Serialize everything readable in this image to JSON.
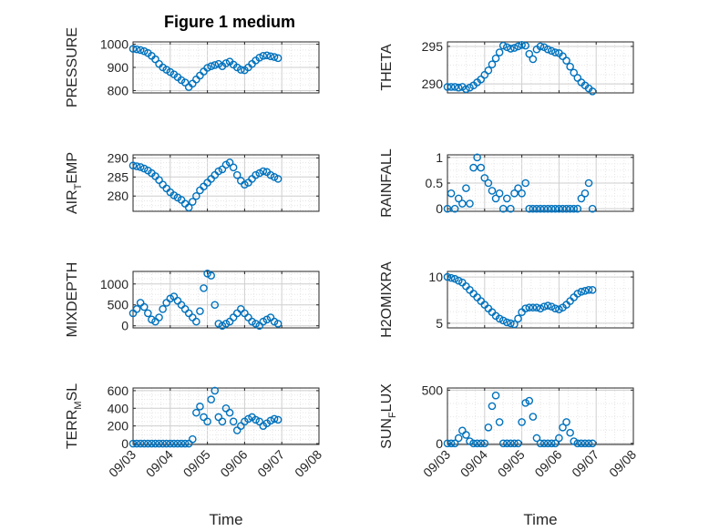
{
  "figure_title": "Figure 1 medium",
  "marker_color": "#0072BD",
  "chart_data": [
    {
      "type": "scatter",
      "id": "pressure",
      "ylabel": "PRESSURE",
      "ylabel_sub": "",
      "xlabel": "",
      "ylim": [
        790,
        1010
      ],
      "yticks": [
        800,
        900,
        1000
      ],
      "xticks": [
        "09/03",
        "09/04",
        "09/05",
        "09/06",
        "09/07",
        "09/08"
      ],
      "xlim": [
        0,
        5
      ],
      "grid": true,
      "x": [
        0,
        0.1,
        0.2,
        0.3,
        0.4,
        0.5,
        0.6,
        0.7,
        0.8,
        0.9,
        1.0,
        1.1,
        1.2,
        1.3,
        1.4,
        1.5,
        1.6,
        1.7,
        1.8,
        1.9,
        2.0,
        2.1,
        2.2,
        2.3,
        2.4,
        2.5,
        2.6,
        2.7,
        2.8,
        2.9,
        3.0,
        3.1,
        3.2,
        3.3,
        3.4,
        3.5,
        3.6,
        3.7,
        3.8,
        3.9
      ],
      "y": [
        980,
        978,
        975,
        970,
        962,
        950,
        935,
        915,
        900,
        890,
        880,
        870,
        858,
        845,
        835,
        815,
        830,
        848,
        865,
        882,
        898,
        905,
        910,
        915,
        905,
        918,
        925,
        912,
        900,
        890,
        888,
        900,
        915,
        930,
        942,
        950,
        952,
        948,
        945,
        940
      ]
    },
    {
      "type": "scatter",
      "id": "theta",
      "ylabel": "THETA",
      "ylabel_sub": "",
      "xlabel": "",
      "ylim": [
        288.8,
        295.6
      ],
      "yticks": [
        290,
        295
      ],
      "xticks": [
        "09/03",
        "09/04",
        "09/05",
        "09/06",
        "09/07",
        "09/08"
      ],
      "xlim": [
        0,
        5
      ],
      "grid": true,
      "x": [
        0,
        0.1,
        0.2,
        0.3,
        0.4,
        0.5,
        0.6,
        0.7,
        0.8,
        0.9,
        1.0,
        1.1,
        1.2,
        1.3,
        1.4,
        1.5,
        1.6,
        1.7,
        1.8,
        1.9,
        2.0,
        2.1,
        2.2,
        2.3,
        2.4,
        2.5,
        2.6,
        2.7,
        2.8,
        2.9,
        3.0,
        3.1,
        3.2,
        3.3,
        3.4,
        3.5,
        3.6,
        3.7,
        3.8,
        3.9
      ],
      "y": [
        289.6,
        289.6,
        289.6,
        289.5,
        289.6,
        289.3,
        289.5,
        289.8,
        290.2,
        290.6,
        291.2,
        291.8,
        292.6,
        293.4,
        294.2,
        295.1,
        294.9,
        294.7,
        294.8,
        295.0,
        295.2,
        295.1,
        294.0,
        293.3,
        294.6,
        295.0,
        294.9,
        294.6,
        294.4,
        294.2,
        294.1,
        293.7,
        293.1,
        292.3,
        291.5,
        290.8,
        290.2,
        289.8,
        289.4,
        289.0
      ]
    },
    {
      "type": "scatter",
      "id": "air_temp",
      "ylabel": "AIR",
      "ylabel_sub": "T",
      "ylabel_suffix": "EMP",
      "xlabel": "",
      "ylim": [
        276,
        290.8
      ],
      "yticks": [
        280,
        285,
        290
      ],
      "xticks": [
        "09/03",
        "09/04",
        "09/05",
        "09/06",
        "09/07",
        "09/08"
      ],
      "xlim": [
        0,
        5
      ],
      "grid": true,
      "x": [
        0,
        0.1,
        0.2,
        0.3,
        0.4,
        0.5,
        0.6,
        0.7,
        0.8,
        0.9,
        1.0,
        1.1,
        1.2,
        1.3,
        1.4,
        1.5,
        1.6,
        1.7,
        1.8,
        1.9,
        2.0,
        2.1,
        2.2,
        2.3,
        2.4,
        2.5,
        2.6,
        2.7,
        2.8,
        2.9,
        3.0,
        3.1,
        3.2,
        3.3,
        3.4,
        3.5,
        3.6,
        3.7,
        3.8,
        3.9
      ],
      "y": [
        288.0,
        287.8,
        287.6,
        287.2,
        286.7,
        286.0,
        285.2,
        284.2,
        283.0,
        282.0,
        281.0,
        280.2,
        279.6,
        279.0,
        278.0,
        277.0,
        278.5,
        280.0,
        281.5,
        282.5,
        283.5,
        284.5,
        285.5,
        286.5,
        287.0,
        288.2,
        288.8,
        287.5,
        285.5,
        284.0,
        283.0,
        283.5,
        284.5,
        285.5,
        286.0,
        286.5,
        286.3,
        285.5,
        285.0,
        284.5
      ]
    },
    {
      "type": "scatter",
      "id": "rainfall",
      "ylabel": "RAINFALL",
      "ylabel_sub": "",
      "xlabel": "",
      "ylim": [
        -0.05,
        1.05
      ],
      "yticks": [
        0,
        0.5,
        1
      ],
      "xticks": [
        "09/03",
        "09/04",
        "09/05",
        "09/06",
        "09/07",
        "09/08"
      ],
      "xlim": [
        0,
        5
      ],
      "grid": true,
      "x": [
        0,
        0.1,
        0.2,
        0.3,
        0.4,
        0.5,
        0.6,
        0.7,
        0.8,
        0.9,
        1.0,
        1.1,
        1.2,
        1.3,
        1.4,
        1.5,
        1.6,
        1.7,
        1.8,
        1.9,
        2.0,
        2.1,
        2.2,
        2.3,
        2.4,
        2.5,
        2.6,
        2.7,
        2.8,
        2.9,
        3.0,
        3.1,
        3.2,
        3.3,
        3.4,
        3.5,
        3.6,
        3.7,
        3.8,
        3.9
      ],
      "y": [
        0,
        0.3,
        0,
        0.2,
        0.1,
        0.4,
        0.1,
        0.8,
        1.0,
        0.8,
        0.6,
        0.5,
        0.35,
        0.2,
        0.3,
        0,
        0.2,
        0,
        0.3,
        0.4,
        0.3,
        0.5,
        0,
        0,
        0,
        0,
        0,
        0,
        0,
        0,
        0,
        0,
        0,
        0,
        0,
        0,
        0.2,
        0.3,
        0.5,
        0
      ]
    },
    {
      "type": "scatter",
      "id": "mixdepth",
      "ylabel": "MIXDEPTH",
      "ylabel_sub": "",
      "xlabel": "",
      "ylim": [
        -50,
        1300
      ],
      "yticks": [
        0,
        500,
        1000
      ],
      "xticks": [
        "09/03",
        "09/04",
        "09/05",
        "09/06",
        "09/07",
        "09/08"
      ],
      "xlim": [
        0,
        5
      ],
      "grid": true,
      "x": [
        0,
        0.1,
        0.2,
        0.3,
        0.4,
        0.5,
        0.6,
        0.7,
        0.8,
        0.9,
        1.0,
        1.1,
        1.2,
        1.3,
        1.4,
        1.5,
        1.6,
        1.7,
        1.8,
        1.9,
        2.0,
        2.1,
        2.2,
        2.3,
        2.4,
        2.5,
        2.6,
        2.7,
        2.8,
        2.9,
        3.0,
        3.1,
        3.2,
        3.3,
        3.4,
        3.5,
        3.6,
        3.7,
        3.8,
        3.9
      ],
      "y": [
        300,
        400,
        550,
        450,
        300,
        150,
        100,
        200,
        400,
        550,
        650,
        700,
        600,
        500,
        400,
        300,
        200,
        100,
        350,
        900,
        1250,
        1200,
        500,
        50,
        0,
        50,
        100,
        200,
        300,
        400,
        300,
        200,
        100,
        50,
        0,
        100,
        150,
        200,
        100,
        50
      ]
    },
    {
      "type": "scatter",
      "id": "h2omixra",
      "ylabel": "H2OMIXRA",
      "ylabel_sub": "",
      "xlabel": "",
      "ylim": [
        4.5,
        10.6
      ],
      "yticks": [
        5,
        10
      ],
      "xticks": [
        "09/03",
        "09/04",
        "09/05",
        "09/06",
        "09/07",
        "09/08"
      ],
      "xlim": [
        0,
        5
      ],
      "grid": true,
      "x": [
        0,
        0.1,
        0.2,
        0.3,
        0.4,
        0.5,
        0.6,
        0.7,
        0.8,
        0.9,
        1.0,
        1.1,
        1.2,
        1.3,
        1.4,
        1.5,
        1.6,
        1.7,
        1.8,
        1.9,
        2.0,
        2.1,
        2.2,
        2.3,
        2.4,
        2.5,
        2.6,
        2.7,
        2.8,
        2.9,
        3.0,
        3.1,
        3.2,
        3.3,
        3.4,
        3.5,
        3.6,
        3.7,
        3.8,
        3.9
      ],
      "y": [
        10.0,
        9.9,
        9.8,
        9.6,
        9.4,
        9.0,
        8.6,
        8.2,
        7.8,
        7.4,
        7.0,
        6.6,
        6.2,
        5.8,
        5.5,
        5.3,
        5.1,
        5.0,
        4.9,
        5.5,
        6.2,
        6.6,
        6.7,
        6.7,
        6.7,
        6.6,
        6.8,
        6.9,
        6.8,
        6.6,
        6.5,
        6.7,
        7.0,
        7.4,
        7.8,
        8.2,
        8.4,
        8.5,
        8.6,
        8.6
      ]
    },
    {
      "type": "scatter",
      "id": "terr_msl",
      "ylabel": "TERR",
      "ylabel_sub": "M",
      "ylabel_suffix": "SL",
      "xlabel": "Time",
      "ylim": [
        -10,
        630
      ],
      "yticks": [
        0,
        200,
        400,
        600
      ],
      "xticks": [
        "09/03",
        "09/04",
        "09/05",
        "09/06",
        "09/07",
        "09/08"
      ],
      "xlim": [
        0,
        5
      ],
      "grid": true,
      "x": [
        0,
        0.1,
        0.2,
        0.3,
        0.4,
        0.5,
        0.6,
        0.7,
        0.8,
        0.9,
        1.0,
        1.1,
        1.2,
        1.3,
        1.4,
        1.5,
        1.6,
        1.7,
        1.8,
        1.9,
        2.0,
        2.1,
        2.2,
        2.3,
        2.4,
        2.5,
        2.6,
        2.7,
        2.8,
        2.9,
        3.0,
        3.1,
        3.2,
        3.3,
        3.4,
        3.5,
        3.6,
        3.7,
        3.8,
        3.9
      ],
      "y": [
        0,
        0,
        0,
        0,
        0,
        0,
        0,
        0,
        0,
        0,
        0,
        0,
        0,
        0,
        0,
        0,
        50,
        350,
        420,
        300,
        250,
        500,
        600,
        300,
        250,
        400,
        350,
        250,
        150,
        200,
        250,
        280,
        300,
        270,
        250,
        200,
        230,
        260,
        280,
        270
      ]
    },
    {
      "type": "scatter",
      "id": "sun_flux",
      "ylabel": "SUN",
      "ylabel_sub": "F",
      "ylabel_suffix": "LUX",
      "xlabel": "Time",
      "ylim": [
        -10,
        520
      ],
      "yticks": [
        0,
        500
      ],
      "xticks": [
        "09/03",
        "09/04",
        "09/05",
        "09/06",
        "09/07",
        "09/08"
      ],
      "xlim": [
        0,
        5
      ],
      "grid": true,
      "x": [
        0,
        0.1,
        0.2,
        0.3,
        0.4,
        0.5,
        0.6,
        0.7,
        0.8,
        0.9,
        1.0,
        1.1,
        1.2,
        1.3,
        1.4,
        1.5,
        1.6,
        1.7,
        1.8,
        1.9,
        2.0,
        2.1,
        2.2,
        2.3,
        2.4,
        2.5,
        2.6,
        2.7,
        2.8,
        2.9,
        3.0,
        3.1,
        3.2,
        3.3,
        3.4,
        3.5,
        3.6,
        3.7,
        3.8,
        3.9
      ],
      "y": [
        0,
        0,
        0,
        50,
        120,
        80,
        20,
        0,
        0,
        0,
        0,
        150,
        350,
        450,
        200,
        0,
        0,
        0,
        0,
        0,
        200,
        380,
        400,
        250,
        50,
        0,
        0,
        0,
        0,
        0,
        50,
        150,
        200,
        100,
        20,
        0,
        0,
        0,
        0,
        0
      ]
    }
  ]
}
